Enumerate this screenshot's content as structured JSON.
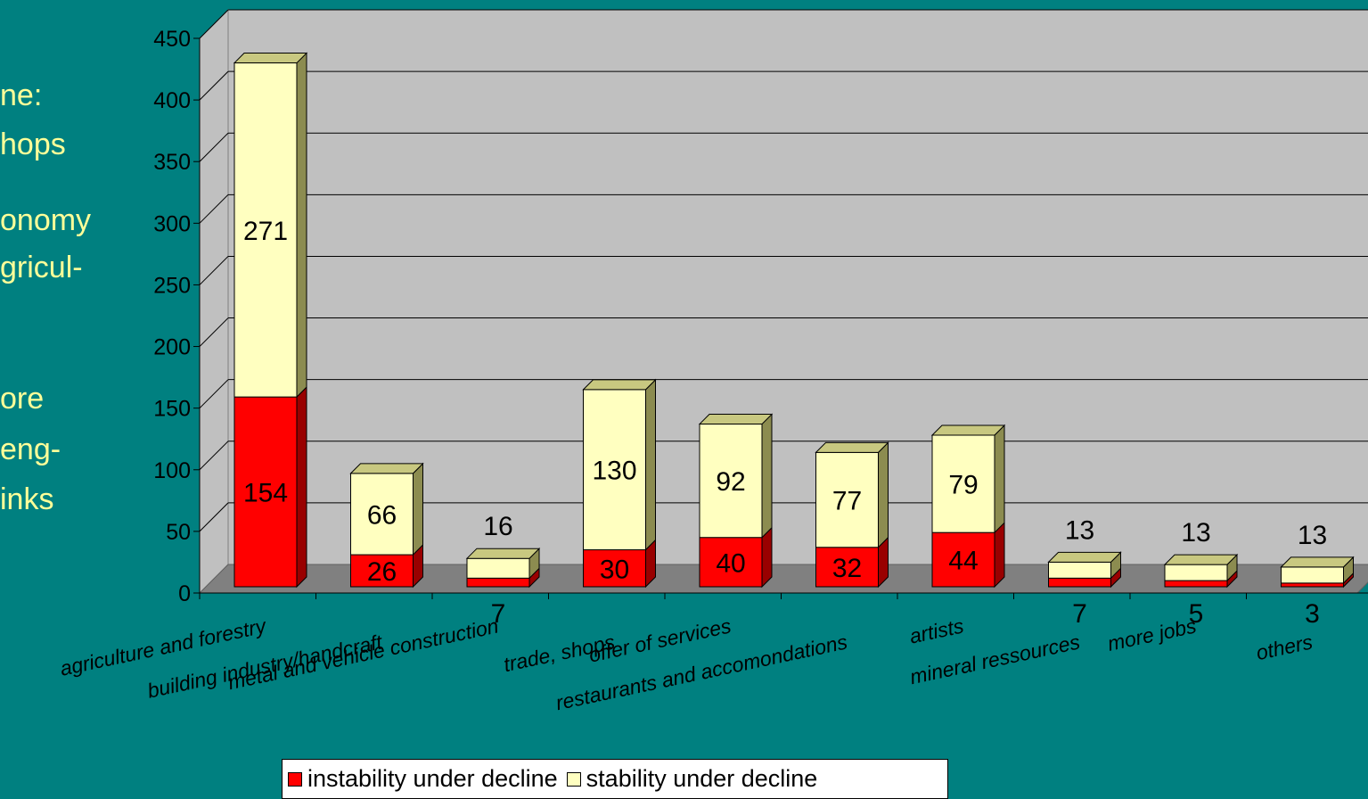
{
  "side_text": [
    "ne:",
    "hops",
    "onomy",
    "gricul-",
    "ore",
    "eng-",
    "inks"
  ],
  "chart_data": {
    "type": "bar",
    "stacked": true,
    "three_d": true,
    "title": "",
    "xlabel": "",
    "ylabel": "",
    "ylim": [
      0,
      450
    ],
    "yticks": [
      0,
      50,
      100,
      150,
      200,
      250,
      300,
      350,
      400,
      450
    ],
    "grid": true,
    "legend_position": "bottom",
    "categories": [
      "agriculture and forestry",
      "building industry/handcraft",
      "metal and vehicle construction",
      "trade, shops",
      "offer of services",
      "restaurants and accomondations",
      "artists",
      "mineral ressources",
      "more jobs",
      "others"
    ],
    "series": [
      {
        "name": "instability under decline",
        "color": "#ff0000",
        "values": [
          154,
          26,
          7,
          30,
          40,
          32,
          44,
          7,
          5,
          3
        ]
      },
      {
        "name": "stability under decline",
        "color": "#ffffc0",
        "values": [
          271,
          66,
          16,
          130,
          92,
          77,
          79,
          13,
          13,
          13
        ]
      }
    ]
  }
}
